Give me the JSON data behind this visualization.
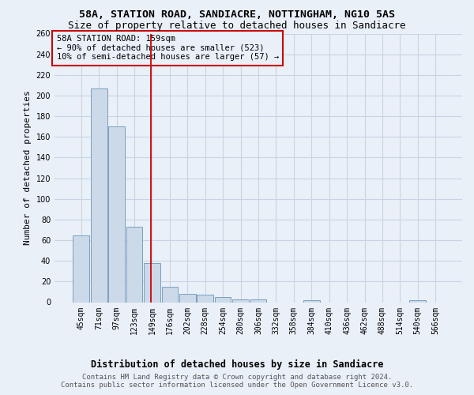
{
  "title1": "58A, STATION ROAD, SANDIACRE, NOTTINGHAM, NG10 5AS",
  "title2": "Size of property relative to detached houses in Sandiacre",
  "xlabel": "Distribution of detached houses by size in Sandiacre",
  "ylabel": "Number of detached properties",
  "categories": [
    "45sqm",
    "71sqm",
    "97sqm",
    "123sqm",
    "149sqm",
    "176sqm",
    "202sqm",
    "228sqm",
    "254sqm",
    "280sqm",
    "306sqm",
    "332sqm",
    "358sqm",
    "384sqm",
    "410sqm",
    "436sqm",
    "462sqm",
    "488sqm",
    "514sqm",
    "540sqm",
    "566sqm"
  ],
  "values": [
    65,
    207,
    170,
    73,
    38,
    15,
    8,
    7,
    5,
    3,
    3,
    0,
    0,
    2,
    0,
    0,
    0,
    0,
    0,
    2,
    0
  ],
  "bar_color": "#ccd9e8",
  "bar_edge_color": "#7ba0c0",
  "bar_linewidth": 0.7,
  "red_line_x": 3.92,
  "red_line_color": "#cc0000",
  "annotation_text_line1": "58A STATION ROAD: 159sqm",
  "annotation_text_line2": "← 90% of detached houses are smaller (523)",
  "annotation_text_line3": "10% of semi-detached houses are larger (57) →",
  "annotation_box_color": "#cc0000",
  "ylim": [
    0,
    260
  ],
  "yticks": [
    0,
    20,
    40,
    60,
    80,
    100,
    120,
    140,
    160,
    180,
    200,
    220,
    240,
    260
  ],
  "background_color": "#eaf0f8",
  "grid_color": "#c8d4e4",
  "footer_text": "Contains HM Land Registry data © Crown copyright and database right 2024.\nContains public sector information licensed under the Open Government Licence v3.0.",
  "title1_fontsize": 9.5,
  "title2_fontsize": 9,
  "xlabel_fontsize": 8.5,
  "ylabel_fontsize": 8,
  "tick_fontsize": 7,
  "footer_fontsize": 6.5
}
